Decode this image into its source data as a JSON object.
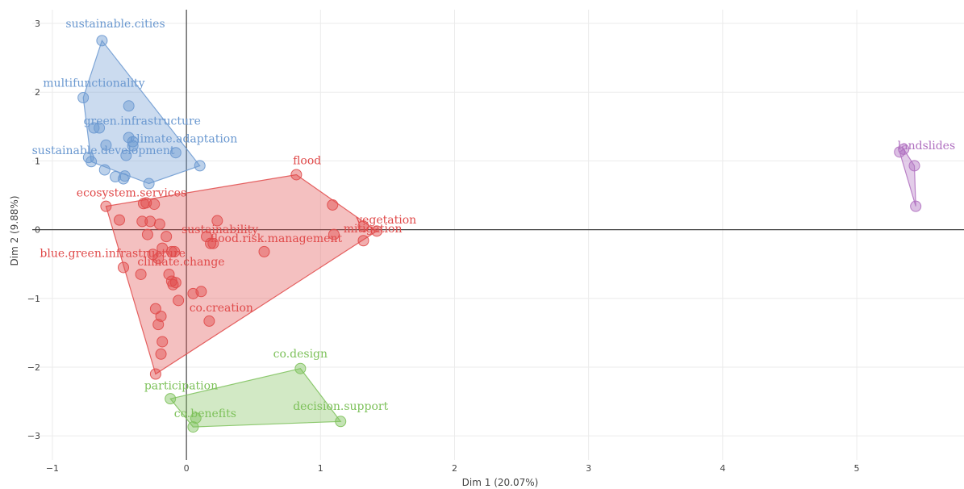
{
  "chart_data": {
    "type": "scatter",
    "title": "",
    "xlabel": "Dim 1 (20.07%)",
    "ylabel": "Dim 2 (9.88%)",
    "xlim": [
      -1.15,
      5.8
    ],
    "ylim": [
      -3.35,
      3.2
    ],
    "x_ticks": [
      -1,
      0,
      1,
      2,
      3,
      4,
      5
    ],
    "y_ticks": [
      -3,
      -2,
      -1,
      0,
      1,
      2,
      3
    ],
    "grid": true,
    "legend": "none",
    "clusters": [
      {
        "color": "#6a98d0",
        "hull": [
          [
            -0.63,
            2.75
          ],
          [
            -0.77,
            1.92
          ],
          [
            -0.71,
            0.99
          ],
          [
            -0.28,
            0.67
          ],
          [
            0.1,
            0.93
          ]
        ],
        "points": [
          [
            -0.63,
            2.75
          ],
          [
            -0.77,
            1.92
          ],
          [
            -0.43,
            1.8
          ],
          [
            -0.69,
            1.48
          ],
          [
            -0.65,
            1.48
          ],
          [
            -0.43,
            1.34
          ],
          [
            -0.4,
            1.28
          ],
          [
            -0.4,
            1.22
          ],
          [
            -0.6,
            1.23
          ],
          [
            -0.73,
            1.05
          ],
          [
            -0.71,
            0.99
          ],
          [
            -0.45,
            1.08
          ],
          [
            -0.08,
            1.12
          ],
          [
            -0.61,
            0.87
          ],
          [
            -0.53,
            0.77
          ],
          [
            -0.46,
            0.78
          ],
          [
            -0.47,
            0.74
          ],
          [
            -0.28,
            0.67
          ],
          [
            0.1,
            0.93
          ]
        ],
        "labels": [
          {
            "text": "sustainable.cities",
            "x": -0.53,
            "y": 2.94
          },
          {
            "text": "multifunctionality",
            "x": -0.69,
            "y": 2.08
          },
          {
            "text": "green.infrastructure",
            "x": -0.33,
            "y": 1.53
          },
          {
            "text": "climate.adaptation",
            "x": -0.02,
            "y": 1.27
          },
          {
            "text": "sustainable.development",
            "x": -0.62,
            "y": 1.1
          }
        ]
      },
      {
        "color": "#e04a4a",
        "hull": [
          [
            -0.6,
            0.34
          ],
          [
            0.82,
            0.8
          ],
          [
            1.42,
            -0.02
          ],
          [
            -0.23,
            -2.1
          ]
        ],
        "points": [
          [
            0.82,
            0.8
          ],
          [
            1.09,
            0.36
          ],
          [
            1.32,
            0.05
          ],
          [
            1.42,
            -0.02
          ],
          [
            1.32,
            -0.16
          ],
          [
            1.1,
            -0.07
          ],
          [
            -0.6,
            0.34
          ],
          [
            -0.32,
            0.38
          ],
          [
            -0.3,
            0.39
          ],
          [
            -0.24,
            0.37
          ],
          [
            -0.5,
            0.14
          ],
          [
            -0.33,
            0.12
          ],
          [
            -0.27,
            0.12
          ],
          [
            -0.2,
            0.08
          ],
          [
            -0.29,
            -0.07
          ],
          [
            -0.15,
            -0.1
          ],
          [
            0.23,
            0.13
          ],
          [
            0.15,
            -0.1
          ],
          [
            0.18,
            -0.2
          ],
          [
            0.2,
            -0.2
          ],
          [
            0.58,
            -0.32
          ],
          [
            -0.18,
            -0.27
          ],
          [
            -0.11,
            -0.32
          ],
          [
            -0.09,
            -0.32
          ],
          [
            -0.25,
            -0.36
          ],
          [
            -0.21,
            -0.42
          ],
          [
            -0.47,
            -0.55
          ],
          [
            -0.34,
            -0.65
          ],
          [
            -0.13,
            -0.65
          ],
          [
            -0.11,
            -0.75
          ],
          [
            -0.08,
            -0.77
          ],
          [
            -0.1,
            -0.8
          ],
          [
            -0.06,
            -1.03
          ],
          [
            0.05,
            -0.93
          ],
          [
            0.11,
            -0.9
          ],
          [
            -0.23,
            -1.15
          ],
          [
            -0.19,
            -1.26
          ],
          [
            -0.21,
            -1.38
          ],
          [
            -0.18,
            -1.63
          ],
          [
            -0.19,
            -1.81
          ],
          [
            0.17,
            -1.33
          ],
          [
            -0.23,
            -2.1
          ]
        ],
        "labels": [
          {
            "text": "flood",
            "x": 0.9,
            "y": 0.95
          },
          {
            "text": "ecosystem.services",
            "x": -0.41,
            "y": 0.48
          },
          {
            "text": "vegetation",
            "x": 1.49,
            "y": 0.09
          },
          {
            "text": "mitigation",
            "x": 1.39,
            "y": -0.04
          },
          {
            "text": "sustainability",
            "x": 0.25,
            "y": -0.05
          },
          {
            "text": "flood.risk.management",
            "x": 0.67,
            "y": -0.18
          },
          {
            "text": "blue.green.infrastructure",
            "x": -0.55,
            "y": -0.4
          },
          {
            "text": "climate.change",
            "x": -0.04,
            "y": -0.52
          },
          {
            "text": "co.creation",
            "x": 0.26,
            "y": -1.19
          }
        ]
      },
      {
        "color": "#7dc15a",
        "hull": [
          [
            0.85,
            -2.02
          ],
          [
            -0.12,
            -2.46
          ],
          [
            0.05,
            -2.87
          ],
          [
            1.15,
            -2.79
          ]
        ],
        "points": [
          [
            0.85,
            -2.02
          ],
          [
            -0.12,
            -2.46
          ],
          [
            0.07,
            -2.74
          ],
          [
            0.05,
            -2.87
          ],
          [
            1.15,
            -2.79
          ]
        ],
        "labels": [
          {
            "text": "co.design",
            "x": 0.85,
            "y": -1.86
          },
          {
            "text": "participation",
            "x": -0.04,
            "y": -2.32
          },
          {
            "text": "co.benefits",
            "x": 0.14,
            "y": -2.73
          },
          {
            "text": "decision.support",
            "x": 1.15,
            "y": -2.62
          }
        ]
      },
      {
        "color": "#b070c0",
        "hull": [
          [
            5.32,
            1.13
          ],
          [
            5.35,
            1.17
          ],
          [
            5.43,
            0.93
          ],
          [
            5.44,
            0.34
          ]
        ],
        "points": [
          [
            5.32,
            1.13
          ],
          [
            5.35,
            1.17
          ],
          [
            5.43,
            0.93
          ],
          [
            5.44,
            0.34
          ]
        ],
        "labels": [
          {
            "text": "landslides",
            "x": 5.52,
            "y": 1.17
          }
        ]
      }
    ]
  }
}
